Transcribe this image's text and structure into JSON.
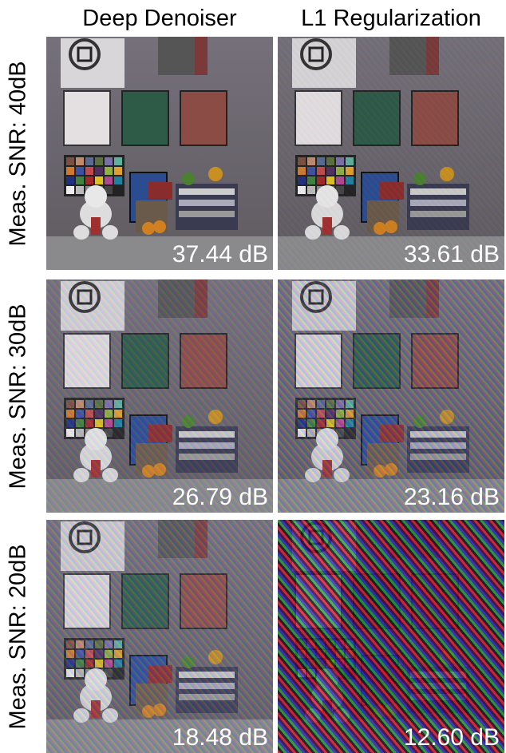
{
  "columns": [
    "Deep Denoiser",
    "L1 Regularization"
  ],
  "rows": [
    {
      "label": "Meas. SNR: 40dB",
      "cells": [
        "37.44 dB",
        "33.61 dB"
      ]
    },
    {
      "label": "Meas. SNR: 30dB",
      "cells": [
        "26.79 dB",
        "23.16 dB"
      ]
    },
    {
      "label": "Meas. SNR: 20dB",
      "cells": [
        "18.48 dB",
        "12.60 dB"
      ]
    }
  ]
}
